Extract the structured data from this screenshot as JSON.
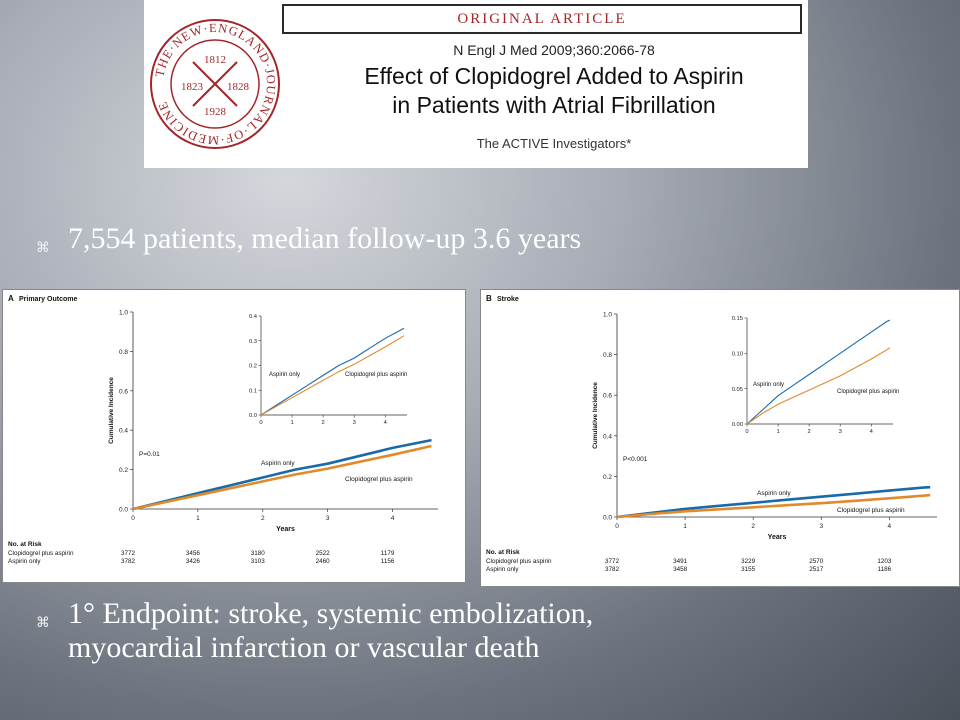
{
  "header": {
    "banner": "ORIGINAL ARTICLE",
    "citation": "N Engl J Med 2009;360:2066-78",
    "title_line1": "Effect of Clopidogrel Added to Aspirin",
    "title_line2": "in Patients with Atrial Fibrillation",
    "authors": "The ACTIVE Investigators*",
    "seal": {
      "ring_text": "THE NEW ENGLAND JOURNAL OF MEDICINE",
      "years": [
        "1812",
        "1823",
        "1828",
        "1928"
      ],
      "color": "#a3262a"
    }
  },
  "bullets": {
    "b1": "7,554 patients, median follow-up 3.6 years",
    "b2_line1": "1° Endpoint: stroke, systemic embolization,",
    "b2_line2": "myocardial infarction or vascular death",
    "marker": "⌘"
  },
  "colors": {
    "aspirin": "#1a6aa8",
    "clopidogrel": "#e08a2c"
  },
  "chart_data": [
    {
      "type": "line",
      "panel_label": "A",
      "title": "Primary Outcome",
      "xlabel": "Years",
      "ylabel": "Cumulative Incidence",
      "xlim": [
        0,
        4.7
      ],
      "ylim": [
        0,
        1.0
      ],
      "xticks": [
        0,
        1,
        2,
        3,
        4
      ],
      "yticks": [
        "0.0",
        "0.2",
        "0.4",
        "0.6",
        "0.8",
        "1.0"
      ],
      "p_value": "P=0.01",
      "series": [
        {
          "name": "Aspirin only",
          "color": "#1a6aa8",
          "x": [
            0,
            0.5,
            1,
            1.5,
            2,
            2.5,
            3,
            3.5,
            4,
            4.6
          ],
          "y": [
            0,
            0.04,
            0.08,
            0.12,
            0.16,
            0.2,
            0.23,
            0.27,
            0.31,
            0.35
          ]
        },
        {
          "name": "Clopidogrel plus aspirin",
          "color": "#e08a2c",
          "x": [
            0,
            0.5,
            1,
            1.5,
            2,
            2.5,
            3,
            3.5,
            4,
            4.6
          ],
          "y": [
            0,
            0.035,
            0.07,
            0.105,
            0.14,
            0.175,
            0.205,
            0.24,
            0.275,
            0.32
          ]
        }
      ],
      "inset": {
        "xlim": [
          0,
          4.7
        ],
        "ylim": [
          0,
          0.4
        ],
        "xticks": [
          0,
          1,
          2,
          3,
          4
        ],
        "yticks": [
          "0.0",
          "0.1",
          "0.2",
          "0.3",
          "0.4"
        ]
      },
      "risk_table": {
        "header": "No. at Risk",
        "rows": [
          {
            "label": "Clopidogrel plus aspirin",
            "values": [
              "3772",
              "3456",
              "3180",
              "2522",
              "1179"
            ]
          },
          {
            "label": "Aspirin only",
            "values": [
              "3782",
              "3426",
              "3103",
              "2460",
              "1156"
            ]
          }
        ]
      }
    },
    {
      "type": "line",
      "panel_label": "B",
      "title": "Stroke",
      "xlabel": "Years",
      "ylabel": "Cumulative Incidence",
      "xlim": [
        0,
        4.7
      ],
      "ylim": [
        0,
        1.0
      ],
      "xticks": [
        0,
        1,
        2,
        3,
        4
      ],
      "yticks": [
        "0.0",
        "0.2",
        "0.4",
        "0.6",
        "0.8",
        "1.0"
      ],
      "p_value": "P<0.001",
      "series": [
        {
          "name": "Aspirin only",
          "color": "#1a6aa8",
          "x": [
            0,
            0.5,
            1,
            1.5,
            2,
            2.5,
            3,
            3.5,
            4,
            4.5,
            4.6
          ],
          "y": [
            0,
            0.02,
            0.04,
            0.055,
            0.07,
            0.085,
            0.1,
            0.115,
            0.13,
            0.145,
            0.147
          ]
        },
        {
          "name": "Clopidogrel plus aspirin",
          "color": "#e08a2c",
          "x": [
            0,
            0.5,
            1,
            1.5,
            2,
            2.5,
            3,
            3.5,
            4,
            4.5,
            4.6
          ],
          "y": [
            0,
            0.015,
            0.028,
            0.038,
            0.048,
            0.058,
            0.068,
            0.08,
            0.092,
            0.105,
            0.108
          ]
        }
      ],
      "inset": {
        "xlim": [
          0,
          4.7
        ],
        "ylim": [
          0,
          0.15
        ],
        "xticks": [
          0,
          1,
          2,
          3,
          4
        ],
        "yticks": [
          "0.00",
          "0.05",
          "0.10",
          "0.15"
        ]
      },
      "risk_table": {
        "header": "No. at Risk",
        "rows": [
          {
            "label": "Clopidogrel plus aspirin",
            "values": [
              "3772",
              "3491",
              "3229",
              "2570",
              "1203"
            ]
          },
          {
            "label": "Aspirin only",
            "values": [
              "3782",
              "3458",
              "3155",
              "2517",
              "1186"
            ]
          }
        ]
      }
    }
  ]
}
